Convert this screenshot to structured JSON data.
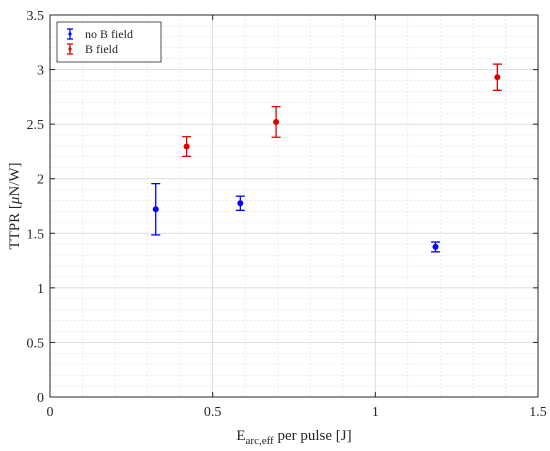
{
  "chart_data": {
    "type": "scatter",
    "xlabel": {
      "main": "E",
      "sub": "arc,eff",
      "rest": " per pulse [J]"
    },
    "ylabel": {
      "pre": "TTPR [",
      "mu": "μ",
      "post": "N/W]"
    },
    "xlim": [
      0,
      1.5
    ],
    "ylim": [
      0,
      3.5
    ],
    "xticks": [
      0,
      0.5,
      1,
      1.5
    ],
    "xtick_labels": [
      "0",
      "0.5",
      "1",
      "1.5"
    ],
    "yticks": [
      0,
      0.5,
      1,
      1.5,
      2,
      2.5,
      3,
      3.5
    ],
    "ytick_labels": [
      "0",
      "0.5",
      "1",
      "1.5",
      "2",
      "2.5",
      "3",
      "3.5"
    ],
    "grid": true,
    "minor_grid": true,
    "legend_position": "top-left",
    "error_bars": true,
    "series": [
      {
        "name": "no B field",
        "color": "#0000ff",
        "points": [
          {
            "x": 0.325,
            "y": 1.72,
            "err": 0.235
          },
          {
            "x": 0.585,
            "y": 1.775,
            "err": 0.065
          },
          {
            "x": 1.185,
            "y": 1.375,
            "err": 0.045
          }
        ]
      },
      {
        "name": "B field",
        "color": "#e00000",
        "points": [
          {
            "x": 0.42,
            "y": 2.295,
            "err": 0.09
          },
          {
            "x": 0.695,
            "y": 2.52,
            "err": 0.14
          },
          {
            "x": 1.375,
            "y": 2.93,
            "err": 0.12
          }
        ]
      }
    ]
  }
}
